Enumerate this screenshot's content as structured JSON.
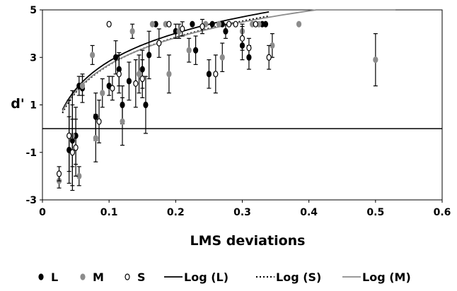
{
  "chart_data": {
    "type": "scatter",
    "xlabel": "LMS deviations",
    "ylabel": "d'",
    "xlim": [
      0,
      0.6
    ],
    "ylim": [
      -3,
      5
    ],
    "xticks": [
      "0",
      "0.1",
      "0.2",
      "0.3",
      "0.4",
      "0.5",
      "0.6"
    ],
    "yticks": [
      "-3",
      "-1",
      "1",
      "3",
      "5"
    ],
    "grid": false,
    "reference_line_y": 0,
    "legend_position": "bottom",
    "colors": {
      "L": "#000000",
      "M": "#8c8c8c",
      "S": "#ffffff",
      "S_stroke": "#000000",
      "LogL": "#000000",
      "LogS": "#000000",
      "LogM": "#8c8c8c"
    },
    "series": [
      {
        "name": "L",
        "marker": "filled-black",
        "points": [
          {
            "x": 0.04,
            "y": -0.9,
            "err": 1.4
          },
          {
            "x": 0.045,
            "y": -0.5,
            "err": 2.1
          },
          {
            "x": 0.05,
            "y": -0.3,
            "err": 1.2
          },
          {
            "x": 0.055,
            "y": 1.8,
            "err": 0.4
          },
          {
            "x": 0.06,
            "y": 1.7,
            "err": 0.6
          },
          {
            "x": 0.08,
            "y": 0.5,
            "err": 1.0
          },
          {
            "x": 0.1,
            "y": 1.8,
            "err": 0.4
          },
          {
            "x": 0.11,
            "y": 3.0,
            "err": 0.7
          },
          {
            "x": 0.115,
            "y": 2.5,
            "err": 0.7
          },
          {
            "x": 0.12,
            "y": 1.0,
            "err": 0.8
          },
          {
            "x": 0.13,
            "y": 2.0,
            "err": 0.8
          },
          {
            "x": 0.15,
            "y": 2.5,
            "err": 0.8
          },
          {
            "x": 0.155,
            "y": 1.0,
            "err": 1.2
          },
          {
            "x": 0.16,
            "y": 3.1,
            "err": 1.0
          },
          {
            "x": 0.17,
            "y": 4.4,
            "err": 0
          },
          {
            "x": 0.2,
            "y": 4.1,
            "err": 0.3
          },
          {
            "x": 0.225,
            "y": 4.4,
            "err": 0
          },
          {
            "x": 0.23,
            "y": 3.3,
            "err": 0.6
          },
          {
            "x": 0.25,
            "y": 2.3,
            "err": 0.6
          },
          {
            "x": 0.255,
            "y": 4.4,
            "err": 0
          },
          {
            "x": 0.27,
            "y": 4.4,
            "err": 0
          },
          {
            "x": 0.275,
            "y": 4.1,
            "err": 0.3
          },
          {
            "x": 0.3,
            "y": 3.5,
            "err": 0.6
          },
          {
            "x": 0.31,
            "y": 3.0,
            "err": 0.5
          },
          {
            "x": 0.33,
            "y": 4.4,
            "err": 0
          },
          {
            "x": 0.335,
            "y": 4.4,
            "err": 0
          }
        ]
      },
      {
        "name": "M",
        "marker": "filled-gray",
        "points": [
          {
            "x": 0.025,
            "y": -2.2,
            "err": 0.3
          },
          {
            "x": 0.045,
            "y": -0.3,
            "err": 1.3
          },
          {
            "x": 0.055,
            "y": -2.0,
            "err": 0.4
          },
          {
            "x": 0.06,
            "y": 1.8,
            "err": 0.4
          },
          {
            "x": 0.075,
            "y": 3.1,
            "err": 0.4
          },
          {
            "x": 0.08,
            "y": -0.4,
            "err": 1.0
          },
          {
            "x": 0.09,
            "y": 1.5,
            "err": 0.6
          },
          {
            "x": 0.12,
            "y": 0.3,
            "err": 1.0
          },
          {
            "x": 0.135,
            "y": 4.1,
            "err": 0.3
          },
          {
            "x": 0.145,
            "y": 2.3,
            "err": 0.8
          },
          {
            "x": 0.165,
            "y": 4.4,
            "err": 0
          },
          {
            "x": 0.185,
            "y": 4.4,
            "err": 0
          },
          {
            "x": 0.19,
            "y": 2.3,
            "err": 0.8
          },
          {
            "x": 0.205,
            "y": 4.1,
            "err": 0.3
          },
          {
            "x": 0.22,
            "y": 3.3,
            "err": 0.5
          },
          {
            "x": 0.245,
            "y": 4.4,
            "err": 0
          },
          {
            "x": 0.265,
            "y": 4.4,
            "err": 0
          },
          {
            "x": 0.27,
            "y": 3.0,
            "err": 0.6
          },
          {
            "x": 0.3,
            "y": 4.1,
            "err": 0.3
          },
          {
            "x": 0.315,
            "y": 4.4,
            "err": 0
          },
          {
            "x": 0.325,
            "y": 4.4,
            "err": 0
          },
          {
            "x": 0.345,
            "y": 3.5,
            "err": 0.5
          },
          {
            "x": 0.385,
            "y": 4.4,
            "err": 0
          },
          {
            "x": 0.5,
            "y": 2.9,
            "err": 1.1
          }
        ]
      },
      {
        "name": "S",
        "marker": "open-circle",
        "points": [
          {
            "x": 0.025,
            "y": -1.9,
            "err": 0.3
          },
          {
            "x": 0.04,
            "y": -0.3,
            "err": 1.5
          },
          {
            "x": 0.045,
            "y": -1.0,
            "err": 1.4
          },
          {
            "x": 0.05,
            "y": -0.8,
            "err": 1.2
          },
          {
            "x": 0.085,
            "y": 0.3,
            "err": 0.9
          },
          {
            "x": 0.1,
            "y": 4.4,
            "err": 0
          },
          {
            "x": 0.105,
            "y": 1.7,
            "err": 0.5
          },
          {
            "x": 0.115,
            "y": 2.3,
            "err": 0.8
          },
          {
            "x": 0.14,
            "y": 1.9,
            "err": 1.0
          },
          {
            "x": 0.15,
            "y": 2.1,
            "err": 0.8
          },
          {
            "x": 0.175,
            "y": 3.6,
            "err": 0.6
          },
          {
            "x": 0.19,
            "y": 4.4,
            "err": 0
          },
          {
            "x": 0.21,
            "y": 4.2,
            "err": 0.3
          },
          {
            "x": 0.24,
            "y": 4.3,
            "err": 0.3
          },
          {
            "x": 0.26,
            "y": 2.3,
            "err": 0.8
          },
          {
            "x": 0.28,
            "y": 4.4,
            "err": 0
          },
          {
            "x": 0.29,
            "y": 4.4,
            "err": 0
          },
          {
            "x": 0.3,
            "y": 3.8,
            "err": 0.5
          },
          {
            "x": 0.31,
            "y": 3.4,
            "err": 0.4
          },
          {
            "x": 0.32,
            "y": 4.4,
            "err": 0
          },
          {
            "x": 0.34,
            "y": 3.0,
            "err": 0.5
          }
        ]
      }
    ],
    "trendlines": [
      {
        "name": "Log (L)",
        "style": "solid",
        "intercept": 6.75,
        "slope": 1.7,
        "x_range": [
          0.03,
          0.34
        ]
      },
      {
        "name": "Log (S)",
        "style": "dotted",
        "intercept": 6.55,
        "slope": 1.68,
        "x_range": [
          0.03,
          0.34
        ]
      },
      {
        "name": "Log (M)",
        "style": "solid-gray",
        "intercept": 6.45,
        "slope": 1.63,
        "x_range": [
          0.03,
          0.53
        ]
      }
    ],
    "legend": [
      {
        "label": "L",
        "kind": "marker-black"
      },
      {
        "label": "M",
        "kind": "marker-gray"
      },
      {
        "label": "S",
        "kind": "marker-open"
      },
      {
        "label": "Log (L)",
        "kind": "line-black"
      },
      {
        "label": "Log (S)",
        "kind": "line-dotted"
      },
      {
        "label": "Log (M)",
        "kind": "line-gray"
      }
    ]
  }
}
